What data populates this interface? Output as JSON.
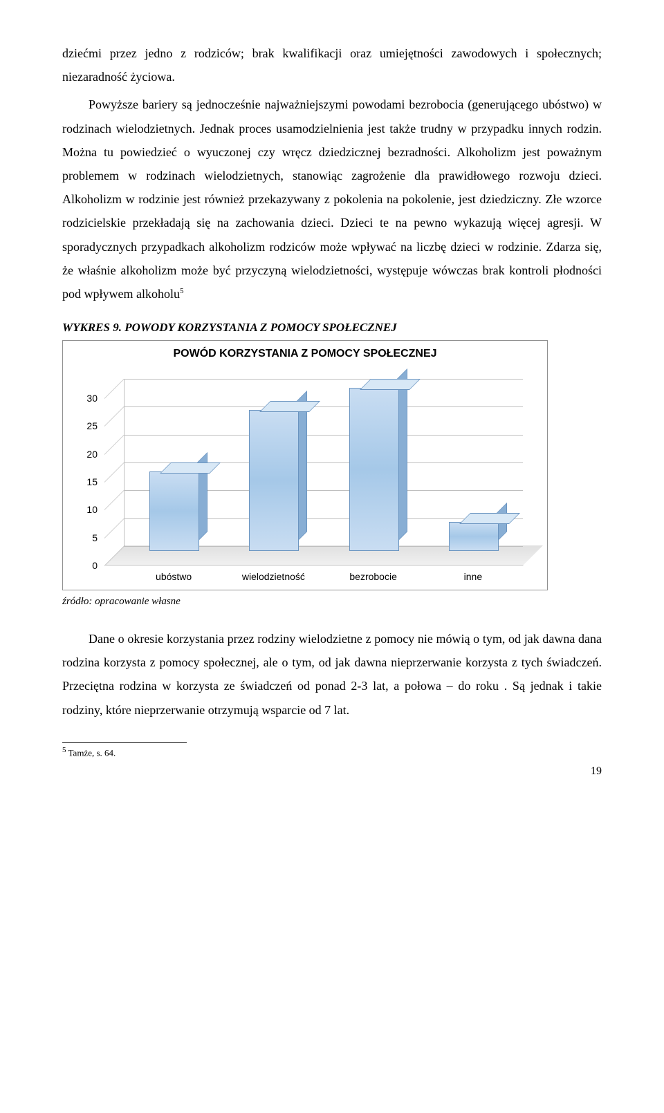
{
  "para1": "dziećmi przez jedno z rodziców; brak kwalifikacji oraz umiejętności zawodowych i społecznych; niezaradność życiowa.",
  "para2": "Powyższe bariery są jednocześnie najważniejszymi powodami bezrobocia (generującego ubóstwo) w rodzinach wielodzietnych. Jednak proces usamodzielnienia jest także trudny w przypadku innych rodzin. Można tu powiedzieć o wyuczonej czy wręcz dziedzicznej bezradności. Alkoholizm jest poważnym problemem w rodzinach wielodzietnych, stanowiąc zagrożenie dla prawidłowego rozwoju dzieci. Alkoholizm w rodzinie jest również przekazywany z pokolenia na pokolenie, jest dziedziczny. Złe wzorce rodzicielskie przekładają się na zachowania dzieci. Dzieci te na pewno wykazują więcej agresji. W sporadycznych przypadkach alkoholizm rodziców może wpływać na liczbę dzieci w rodzinie. Zdarza się, że właśnie alkoholizm może być przyczyną wielodzietności, występuje wówczas brak kontroli płodności pod wpływem alkoholu",
  "fn_mark": "5",
  "wykres_title": "WYKRES 9. POWODY KORZYSTANIA Z POMOCY SPOŁECZNEJ",
  "chart": {
    "title": "POWÓD KORZYSTANIA Z POMOCY SPOŁECZNEJ",
    "ymax": 30,
    "yticks": [
      0,
      5,
      10,
      15,
      20,
      25,
      30
    ],
    "categories": [
      "ubóstwo",
      "wielodzietność",
      "bezrobocie",
      "inne"
    ],
    "values": [
      14,
      25,
      29,
      5
    ],
    "bar_color": "#b9d3ec",
    "bar_side_color": "#88aed4",
    "grid_color": "#bfbfbf"
  },
  "source": "źródło: opracowanie własne",
  "para3": "Dane o okresie korzystania przez rodziny wielodzietne z pomocy nie mówią o tym, od jak dawna dana rodzina korzysta z pomocy społecznej, ale o tym, od jak dawna nieprzerwanie korzysta z tych świadczeń. Przeciętna rodzina w  korzysta ze świadczeń od ponad 2-3 lat, a połowa – do roku . Są jednak i takie rodziny, które nieprzerwanie otrzymują wsparcie od 7 lat.",
  "footnote": "Tamże, s. 64.",
  "footnote_num": "5",
  "page_number": "19"
}
